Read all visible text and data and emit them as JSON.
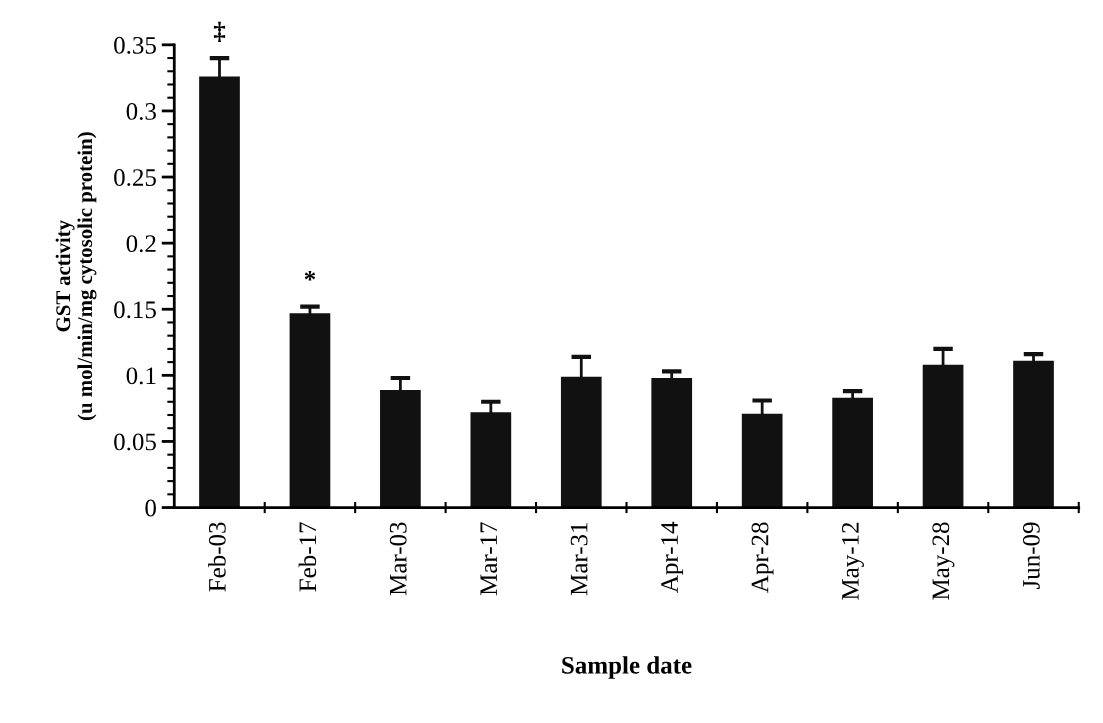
{
  "chart_data": {
    "type": "bar",
    "xlabel": "Sample date",
    "ylabel": "GST activity\n(u mol/min/mg cytosolic protein)",
    "categories": [
      "Feb-03",
      "Feb-17",
      "Mar-03",
      "Mar-17",
      "Mar-31",
      "Apr-14",
      "Apr-28",
      "May-12",
      "May-28",
      "Jun-09"
    ],
    "values": [
      0.326,
      0.147,
      0.089,
      0.072,
      0.099,
      0.098,
      0.071,
      0.083,
      0.108,
      0.111
    ],
    "errors": [
      0.014,
      0.005,
      0.009,
      0.008,
      0.015,
      0.005,
      0.01,
      0.005,
      0.012,
      0.005
    ],
    "color": "#111111",
    "ylim": [
      0,
      0.35
    ],
    "yticks": [
      0,
      {
        "value": 0.01,
        "label": null
      },
      {
        "value": 0.02,
        "label": null
      },
      {
        "value": 0.03,
        "label": null
      },
      {
        "value": 0.04,
        "label": null
      },
      0.05,
      {
        "value": 0.06,
        "label": null
      },
      {
        "value": 0.07,
        "label": null
      },
      {
        "value": 0.08,
        "label": null
      },
      {
        "value": 0.09,
        "label": null
      },
      0.1,
      {
        "value": 0.11,
        "label": null
      },
      {
        "value": 0.12,
        "label": null
      },
      {
        "value": 0.13,
        "label": null
      },
      {
        "value": 0.14,
        "label": null
      },
      0.15,
      {
        "value": 0.16,
        "label": null
      },
      {
        "value": 0.17,
        "label": null
      },
      {
        "value": 0.18,
        "label": null
      },
      {
        "value": 0.19,
        "label": null
      },
      0.2,
      {
        "value": 0.21,
        "label": null
      },
      {
        "value": 0.22,
        "label": null
      },
      {
        "value": 0.23,
        "label": null
      },
      {
        "value": 0.24,
        "label": null
      },
      0.25,
      {
        "value": 0.26,
        "label": null
      },
      {
        "value": 0.27,
        "label": null
      },
      {
        "value": 0.28,
        "label": null
      },
      {
        "value": 0.29,
        "label": null
      },
      0.3,
      {
        "value": 0.31,
        "label": null
      },
      {
        "value": 0.32,
        "label": null
      },
      {
        "value": 0.33,
        "label": null
      },
      {
        "value": 0.34,
        "label": null
      },
      0.35
    ],
    "annotations": [
      {
        "text": "‡",
        "x": "Feb-03",
        "y": 0.326
      },
      {
        "text": "*",
        "x": "Feb-17",
        "y": 0.147
      }
    ],
    "grid": false,
    "legend": false
  }
}
